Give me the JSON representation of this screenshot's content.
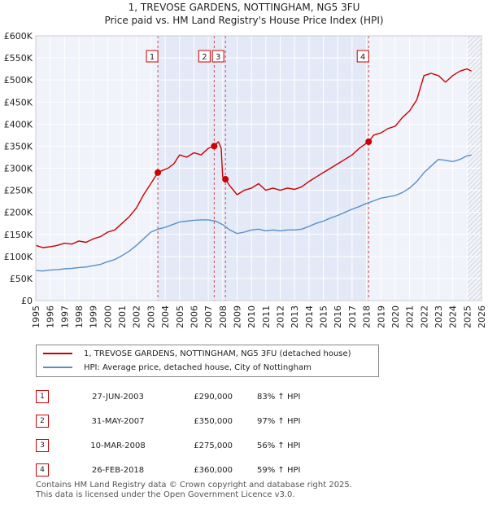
{
  "header": {
    "title": "1, TREVOSE GARDENS, NOTTINGHAM, NG5 3FU",
    "subtitle": "Price paid vs. HM Land Registry's House Price Index (HPI)"
  },
  "chart_data": {
    "type": "line",
    "title": "1, TREVOSE GARDENS, NOTTINGHAM, NG5 3FU",
    "subtitle": "Price paid vs. HM Land Registry's House Price Index (HPI)",
    "xlim": [
      1995,
      2026
    ],
    "ylim": [
      0,
      600000
    ],
    "x_ticks": [
      1995,
      1996,
      1997,
      1998,
      1999,
      2000,
      2001,
      2002,
      2003,
      2004,
      2005,
      2006,
      2007,
      2008,
      2009,
      2010,
      2011,
      2012,
      2013,
      2014,
      2015,
      2016,
      2017,
      2018,
      2019,
      2020,
      2021,
      2022,
      2023,
      2024,
      2025,
      2026
    ],
    "y_ticks": [
      0,
      50000,
      100000,
      150000,
      200000,
      250000,
      300000,
      350000,
      400000,
      450000,
      500000,
      550000,
      600000
    ],
    "y_tick_labels": [
      "£0",
      "£50K",
      "£100K",
      "£150K",
      "£200K",
      "£250K",
      "£300K",
      "£350K",
      "£400K",
      "£450K",
      "£500K",
      "£550K",
      "£600K"
    ],
    "grid": true,
    "hatched_future_from": 2025.0,
    "series": [
      {
        "name": "1, TREVOSE GARDENS, NOTTINGHAM, NG5 3FU (detached house)",
        "color": "#cc0000",
        "x": [
          1995.0,
          1995.5,
          1996.0,
          1996.5,
          1997.0,
          1997.5,
          1998.0,
          1998.5,
          1999.0,
          1999.5,
          2000.0,
          2000.5,
          2001.0,
          2001.5,
          2002.0,
          2002.5,
          2003.0,
          2003.49,
          2003.8,
          2004.2,
          2004.6,
          2005.0,
          2005.5,
          2006.0,
          2006.5,
          2007.0,
          2007.41,
          2007.7,
          2007.9,
          2008.0,
          2008.19,
          2008.5,
          2009.0,
          2009.5,
          2010.0,
          2010.5,
          2011.0,
          2011.5,
          2012.0,
          2012.5,
          2013.0,
          2013.5,
          2014.0,
          2014.5,
          2015.0,
          2015.5,
          2016.0,
          2016.5,
          2017.0,
          2017.5,
          2018.15,
          2018.5,
          2019.0,
          2019.5,
          2020.0,
          2020.5,
          2021.0,
          2021.5,
          2022.0,
          2022.5,
          2023.0,
          2023.5,
          2024.0,
          2024.5,
          2025.0,
          2025.3
        ],
        "values": [
          125000,
          120000,
          122000,
          125000,
          130000,
          128000,
          135000,
          132000,
          140000,
          145000,
          155000,
          160000,
          175000,
          190000,
          210000,
          240000,
          265000,
          290000,
          295000,
          300000,
          310000,
          330000,
          325000,
          335000,
          330000,
          345000,
          350000,
          360000,
          345000,
          280000,
          275000,
          260000,
          240000,
          250000,
          255000,
          265000,
          250000,
          255000,
          250000,
          255000,
          252000,
          258000,
          270000,
          280000,
          290000,
          300000,
          310000,
          320000,
          330000,
          345000,
          360000,
          375000,
          380000,
          390000,
          395000,
          415000,
          430000,
          455000,
          510000,
          515000,
          510000,
          495000,
          510000,
          520000,
          525000,
          520000
        ]
      },
      {
        "name": "HPI: Average price, detached house, City of Nottingham",
        "color": "#5b8ec9",
        "x": [
          1995.0,
          1995.5,
          1996.0,
          1996.5,
          1997.0,
          1997.5,
          1998.0,
          1998.5,
          1999.0,
          1999.5,
          2000.0,
          2000.5,
          2001.0,
          2001.5,
          2002.0,
          2002.5,
          2003.0,
          2003.5,
          2004.0,
          2004.5,
          2005.0,
          2005.5,
          2006.0,
          2006.5,
          2007.0,
          2007.5,
          2008.0,
          2008.5,
          2009.0,
          2009.5,
          2010.0,
          2010.5,
          2011.0,
          2011.5,
          2012.0,
          2012.5,
          2013.0,
          2013.5,
          2014.0,
          2014.5,
          2015.0,
          2015.5,
          2016.0,
          2016.5,
          2017.0,
          2017.5,
          2018.0,
          2018.5,
          2019.0,
          2019.5,
          2020.0,
          2020.5,
          2021.0,
          2021.5,
          2022.0,
          2022.5,
          2023.0,
          2023.5,
          2024.0,
          2024.5,
          2025.0,
          2025.3
        ],
        "values": [
          68000,
          67000,
          69000,
          70000,
          72000,
          73000,
          75000,
          76000,
          79000,
          82000,
          88000,
          93000,
          102000,
          112000,
          125000,
          140000,
          155000,
          162000,
          166000,
          172000,
          178000,
          180000,
          182000,
          183000,
          183000,
          180000,
          172000,
          160000,
          152000,
          155000,
          160000,
          162000,
          158000,
          160000,
          158000,
          160000,
          160000,
          162000,
          168000,
          175000,
          180000,
          187000,
          193000,
          200000,
          207000,
          213000,
          220000,
          226000,
          232000,
          235000,
          238000,
          245000,
          255000,
          270000,
          290000,
          305000,
          320000,
          318000,
          315000,
          320000,
          328000,
          330000
        ]
      }
    ],
    "annotations": [
      {
        "label": "1",
        "x": 2003.49,
        "y": 290000
      },
      {
        "label": "2",
        "x": 2007.41,
        "y": 350000
      },
      {
        "label": "3",
        "x": 2008.19,
        "y": 275000
      },
      {
        "label": "4",
        "x": 2018.15,
        "y": 360000
      }
    ]
  },
  "legend": [
    {
      "label": "1, TREVOSE GARDENS, NOTTINGHAM, NG5 3FU (detached house)",
      "color": "#cc0000"
    },
    {
      "label": "HPI: Average price, detached house, City of Nottingham",
      "color": "#5b8ec9"
    }
  ],
  "sales": [
    {
      "num": "1",
      "date": "27-JUN-2003",
      "price": "£290,000",
      "hpi": "83% ↑ HPI"
    },
    {
      "num": "2",
      "date": "31-MAY-2007",
      "price": "£350,000",
      "hpi": "97% ↑ HPI"
    },
    {
      "num": "3",
      "date": "10-MAR-2008",
      "price": "£275,000",
      "hpi": "56% ↑ HPI"
    },
    {
      "num": "4",
      "date": "26-FEB-2018",
      "price": "£360,000",
      "hpi": "59% ↑ HPI"
    }
  ],
  "footer": {
    "line1": "Contains HM Land Registry data © Crown copyright and database right 2025.",
    "line2": "This data is licensed under the Open Government Licence v3.0."
  }
}
